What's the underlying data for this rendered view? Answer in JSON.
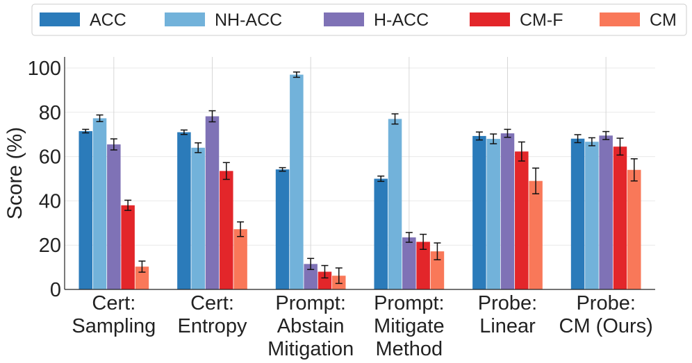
{
  "chart_data": {
    "type": "bar",
    "title": "",
    "xlabel": "",
    "ylabel": "Score (%)",
    "ylim": [
      0,
      105
    ],
    "yticks": [
      0,
      20,
      40,
      60,
      80,
      100
    ],
    "grid": true,
    "legend_position": "top",
    "categories": [
      [
        "Cert:",
        "Sampling"
      ],
      [
        "Cert:",
        "Entropy"
      ],
      [
        "Prompt:",
        "Abstain",
        "Mitigation"
      ],
      [
        "Prompt:",
        "Mitigate",
        "Method"
      ],
      [
        "Probe:",
        "Linear"
      ],
      [
        "Probe:",
        "CM (Ours)"
      ]
    ],
    "series": [
      {
        "name": "ACC",
        "color": "#2b7bba",
        "values": [
          71.5,
          71.0,
          54.2,
          50.0,
          69.3,
          68.1
        ],
        "errors": [
          0.8,
          1.0,
          0.8,
          1.2,
          1.8,
          1.8
        ]
      },
      {
        "name": "NH-ACC",
        "color": "#72b2da",
        "values": [
          77.3,
          64.0,
          97.0,
          77.0,
          68.0,
          66.7
        ],
        "errors": [
          1.5,
          2.2,
          1.2,
          2.3,
          2.2,
          1.8
        ]
      },
      {
        "name": "H-ACC",
        "color": "#7f72b6",
        "values": [
          65.5,
          78.2,
          11.5,
          23.5,
          70.5,
          69.5
        ],
        "errors": [
          2.5,
          2.5,
          2.5,
          2.2,
          1.8,
          1.8
        ]
      },
      {
        "name": "CM-F",
        "color": "#e3262a",
        "values": [
          38.0,
          53.5,
          8.0,
          21.5,
          62.3,
          64.5
        ],
        "errors": [
          2.3,
          3.8,
          2.8,
          3.4,
          4.3,
          3.8
        ]
      },
      {
        "name": "CM",
        "color": "#f97859",
        "values": [
          10.3,
          27.2,
          6.2,
          17.2,
          49.0,
          54.0
        ],
        "errors": [
          2.5,
          3.3,
          3.5,
          3.8,
          5.8,
          5.0
        ]
      }
    ]
  }
}
